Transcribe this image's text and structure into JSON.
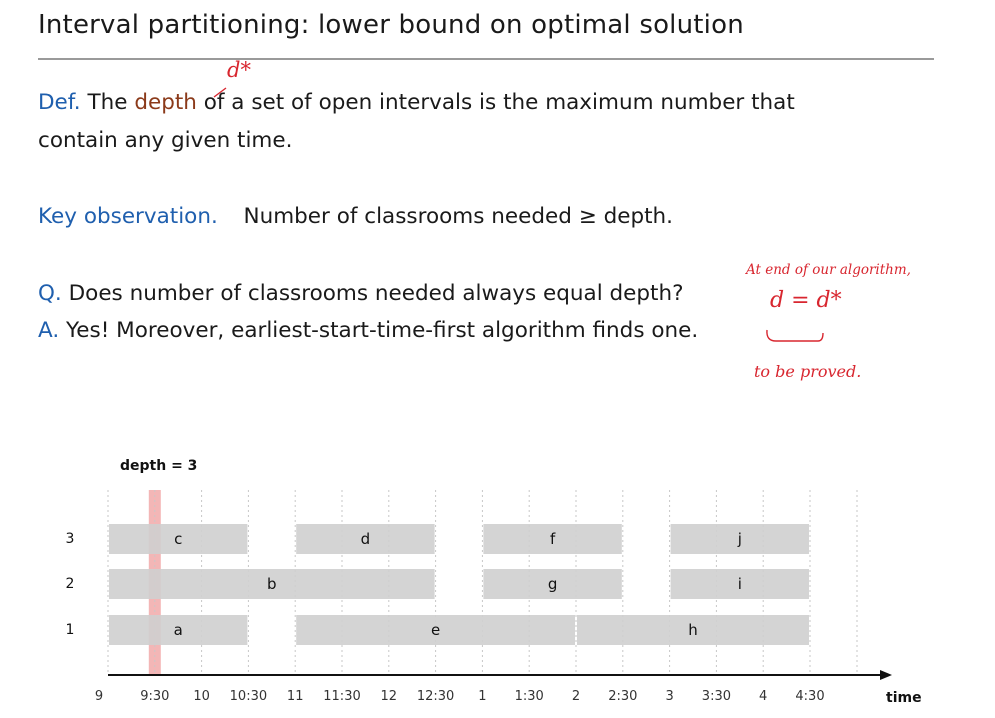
{
  "slide": {
    "title": "Interval partitioning:  lower bound on optimal solution",
    "def_label": "Def.",
    "def_text_1": "The",
    "def_term": "depth",
    "def_text_2": "of a set of open intervals is the maximum number that",
    "def_text_3": "contain any given time.",
    "key_label": "Key observation.",
    "key_text": "Number of classrooms needed  ≥  depth.",
    "q_label": "Q.",
    "q_text": "Does number of classrooms needed always equal depth?",
    "a_label": "A.",
    "a_text": "Yes! Moreover, earliest-start-time-first algorithm finds one."
  },
  "annotations": {
    "depth_mark": "d*",
    "note_line1": "At  end of  our  algorithm,",
    "note_eq": "d = d*",
    "note_line2": "to  be  proved."
  },
  "colors": {
    "accent_blue": "#1f5fae",
    "term_brown": "#8b3a1a",
    "ink_red": "#d8262f",
    "bar_gray": "#cfcfcf",
    "depth_band": "#f1a9a9"
  },
  "chart_data": {
    "type": "bar",
    "depth_label": "depth = 3",
    "depth_time": "9:30",
    "xlabel": "time",
    "ticks": [
      "9",
      "9:30",
      "10",
      "10:30",
      "11",
      "11:30",
      "12",
      "12:30",
      "1",
      "1:30",
      "2",
      "2:30",
      "3",
      "3:30",
      "4",
      "4:30"
    ],
    "rows": [
      "1",
      "2",
      "3"
    ],
    "intervals": [
      {
        "name": "a",
        "row": 1,
        "start": 9.0,
        "end": 10.5
      },
      {
        "name": "e",
        "row": 1,
        "start": 11.0,
        "end": 14.0
      },
      {
        "name": "h",
        "row": 1,
        "start": 14.0,
        "end": 16.5
      },
      {
        "name": "b",
        "row": 2,
        "start": 9.0,
        "end": 12.5
      },
      {
        "name": "g",
        "row": 2,
        "start": 13.0,
        "end": 14.5
      },
      {
        "name": "i",
        "row": 2,
        "start": 15.0,
        "end": 16.5
      },
      {
        "name": "c",
        "row": 3,
        "start": 9.0,
        "end": 10.5
      },
      {
        "name": "d",
        "row": 3,
        "start": 11.0,
        "end": 12.5
      },
      {
        "name": "f",
        "row": 3,
        "start": 13.0,
        "end": 14.5
      },
      {
        "name": "j",
        "row": 3,
        "start": 15.0,
        "end": 16.5
      }
    ]
  }
}
